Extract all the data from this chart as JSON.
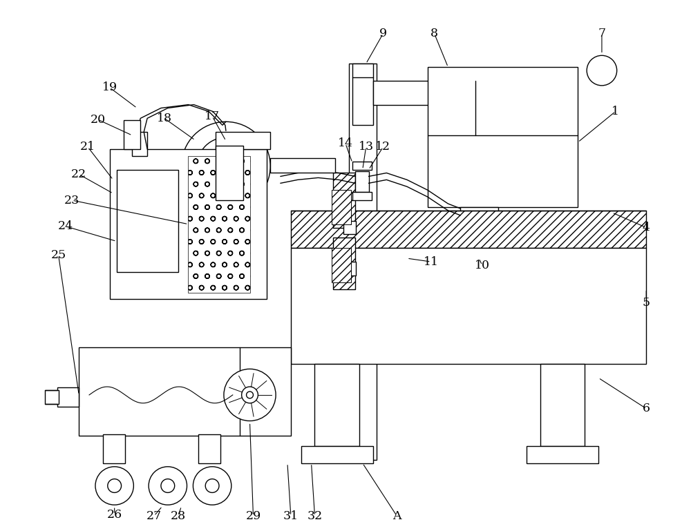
{
  "bg_color": "#ffffff",
  "lc": "#000000",
  "lw": 1.0,
  "fig_w": 10.0,
  "fig_h": 7.69
}
